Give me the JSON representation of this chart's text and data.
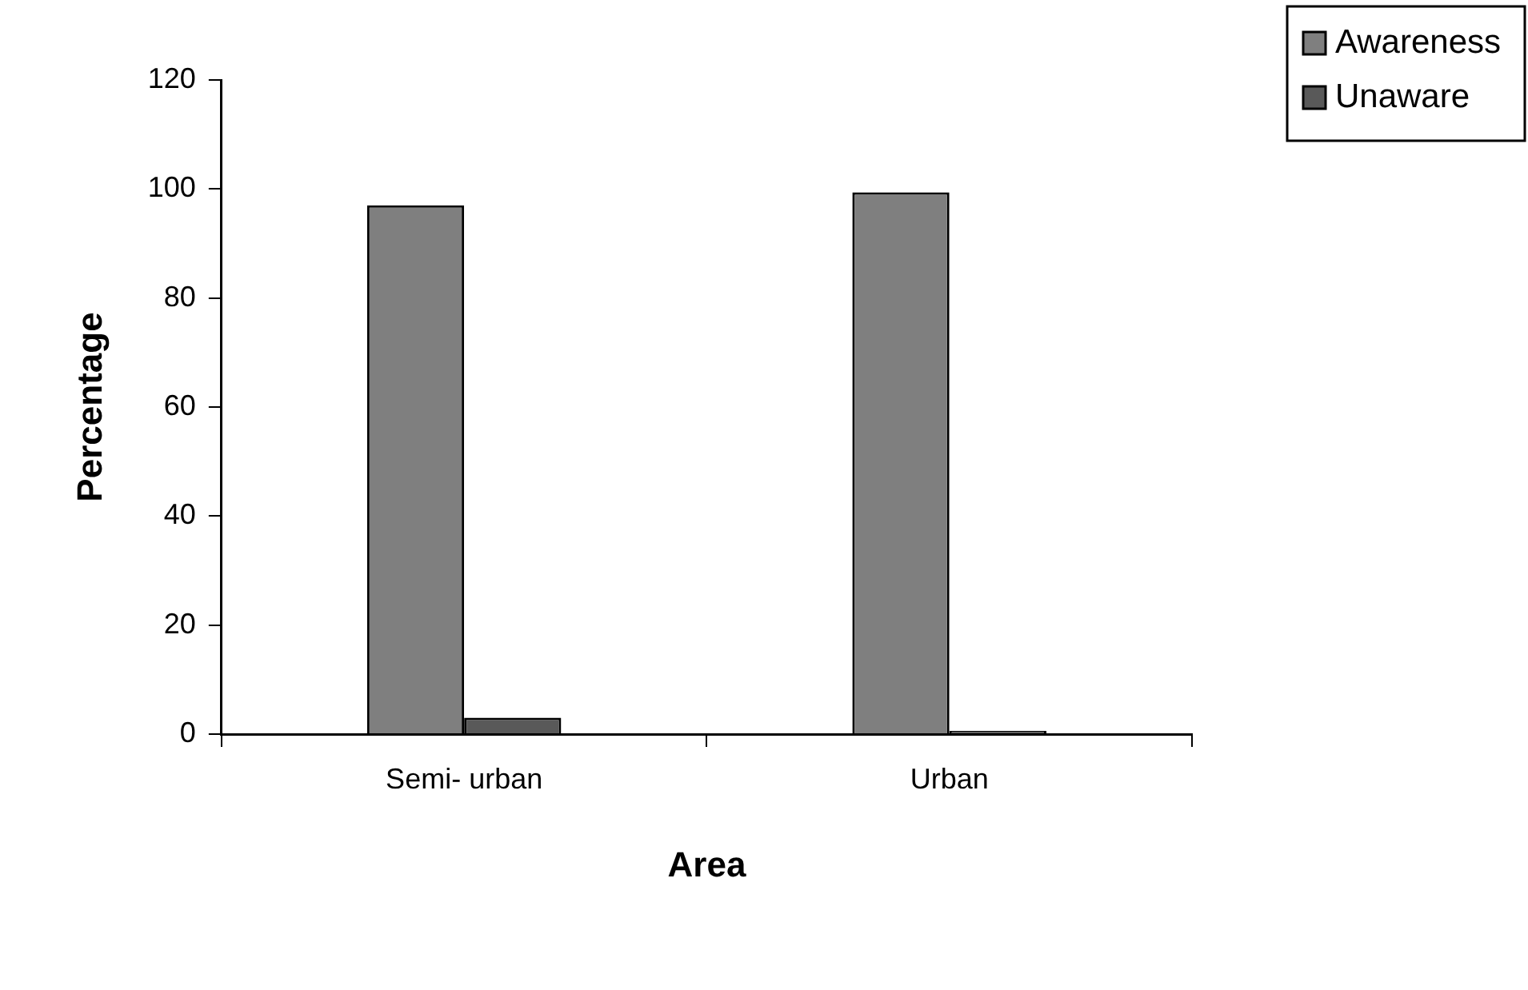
{
  "chart_data": {
    "type": "bar",
    "xlabel": "Area",
    "ylabel": "Percentage",
    "categories": [
      "Semi- urban",
      "Urban"
    ],
    "series": [
      {
        "name": "Awareness",
        "color": "#7f7f7f",
        "values": [
          97,
          99.4
        ]
      },
      {
        "name": "Unaware",
        "color": "#595959",
        "values": [
          3,
          0.6
        ]
      }
    ],
    "ylim": [
      0,
      120
    ],
    "yticks": [
      0,
      20,
      40,
      60,
      80,
      100,
      120
    ],
    "grid": false,
    "legend": "top right"
  }
}
